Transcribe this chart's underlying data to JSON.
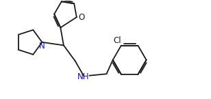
{
  "bg_color": "#ffffff",
  "line_color": "#1a1a1a",
  "N_color": "#1414c8",
  "O_color": "#1a1a1a",
  "Cl_color": "#1a1a1a",
  "lw": 1.3,
  "figsize": [
    3.08,
    1.45
  ],
  "dpi": 100,
  "xlim": [
    0,
    10
  ],
  "ylim": [
    0,
    4.7
  ]
}
